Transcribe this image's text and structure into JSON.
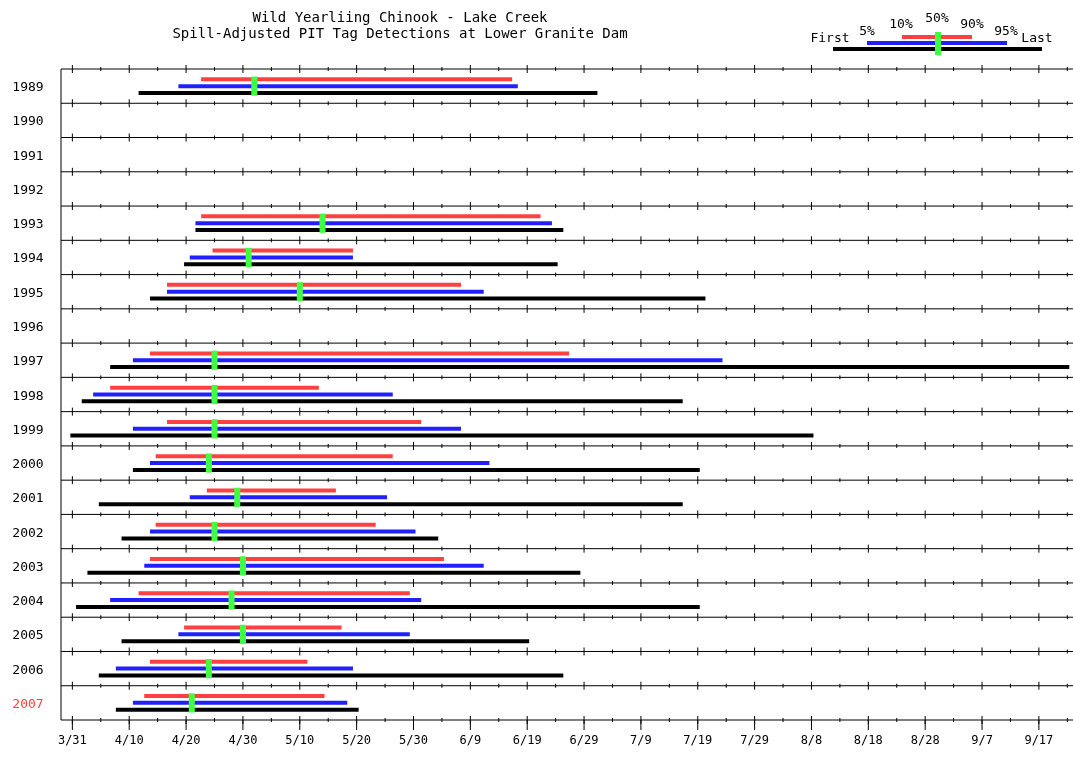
{
  "chart_data": {
    "type": "line",
    "title": "Wild Yearliing Chinook - Lake Creek",
    "subtitle": "Spill-Adjusted PIT Tag Detections at Lower Granite Dam",
    "xlim": [
      "--03-29",
      "--09-23"
    ],
    "xticks": [
      {
        "value": "--03-31",
        "label": "3/31"
      },
      {
        "value": "--04-10",
        "label": "4/10"
      },
      {
        "value": "--04-20",
        "label": "4/20"
      },
      {
        "value": "--04-30",
        "label": "4/30"
      },
      {
        "value": "--05-10",
        "label": "5/10"
      },
      {
        "value": "--05-20",
        "label": "5/20"
      },
      {
        "value": "--05-30",
        "label": "5/30"
      },
      {
        "value": "--06-09",
        "label": "6/9"
      },
      {
        "value": "--06-19",
        "label": "6/19"
      },
      {
        "value": "--06-29",
        "label": "6/29"
      },
      {
        "value": "--07-09",
        "label": "7/9"
      },
      {
        "value": "--07-19",
        "label": "7/19"
      },
      {
        "value": "--07-29",
        "label": "7/29"
      },
      {
        "value": "--08-08",
        "label": "8/8"
      },
      {
        "value": "--08-18",
        "label": "8/18"
      },
      {
        "value": "--08-28",
        "label": "8/28"
      },
      {
        "value": "--09-07",
        "label": "9/7"
      },
      {
        "value": "--09-17",
        "label": "9/17"
      }
    ],
    "ylim": [
      2007.5,
      1988.5
    ],
    "yticks": [
      1989,
      1990,
      1991,
      1992,
      1993,
      1994,
      1995,
      1996,
      1997,
      1998,
      1999,
      2000,
      2001,
      2002,
      2003,
      2004,
      2005,
      2006,
      2007
    ],
    "series": [
      {
        "color": "#ff4040",
        "x": [
          "--04-23",
          "--06-16"
        ],
        "values": [
          1988.8,
          1988.8
        ]
      },
      {
        "color": "#2020ff",
        "x": [
          "--04-19",
          "--06-17"
        ],
        "values": [
          1989,
          1989
        ]
      },
      {
        "color": "#000000",
        "x": [
          "--04-12",
          "--07-01"
        ],
        "values": [
          1989.2,
          1989.2
        ]
      },
      {
        "color": "#ff4040",
        "x": [
          "--04-23",
          "--06-21"
        ],
        "values": [
          1992.8,
          1992.8
        ]
      },
      {
        "color": "#2020ff",
        "x": [
          "--04-22",
          "--06-23"
        ],
        "values": [
          1993,
          1993
        ]
      },
      {
        "color": "#000000",
        "x": [
          "--04-22",
          "--06-25"
        ],
        "values": [
          1993.2,
          1993.2
        ]
      },
      {
        "color": "#ff4040",
        "x": [
          "--04-25",
          "--05-19"
        ],
        "values": [
          1993.8,
          1993.8
        ]
      },
      {
        "color": "#2020ff",
        "x": [
          "--04-21",
          "--05-19"
        ],
        "values": [
          1994,
          1994
        ]
      },
      {
        "color": "#000000",
        "x": [
          "--04-20",
          "--06-24"
        ],
        "values": [
          1994.2,
          1994.2
        ]
      },
      {
        "color": "#ff4040",
        "x": [
          "--04-17",
          "--06-07"
        ],
        "values": [
          1994.8,
          1994.8
        ]
      },
      {
        "color": "#2020ff",
        "x": [
          "--04-17",
          "--06-11"
        ],
        "values": [
          1995,
          1995
        ]
      },
      {
        "color": "#000000",
        "x": [
          "--04-14",
          "--07-20"
        ],
        "values": [
          1995.2,
          1995.2
        ]
      },
      {
        "color": "#ff4040",
        "x": [
          "--04-14",
          "--06-26"
        ],
        "values": [
          1996.8,
          1996.8
        ]
      },
      {
        "color": "#2020ff",
        "x": [
          "--04-11",
          "--07-23"
        ],
        "values": [
          1997,
          1997
        ]
      },
      {
        "color": "#000000",
        "x": [
          "--04-07",
          "--09-22"
        ],
        "values": [
          1997.2,
          1997.2
        ]
      },
      {
        "color": "#ff4040",
        "x": [
          "--04-07",
          "--05-13"
        ],
        "values": [
          1997.8,
          1997.8
        ]
      },
      {
        "color": "#2020ff",
        "x": [
          "--04-04",
          "--05-26"
        ],
        "values": [
          1998,
          1998
        ]
      },
      {
        "color": "#000000",
        "x": [
          "--04-02",
          "--07-16"
        ],
        "values": [
          1998.2,
          1998.2
        ]
      },
      {
        "color": "#ff4040",
        "x": [
          "--04-17",
          "--05-31"
        ],
        "values": [
          1998.8,
          1998.8
        ]
      },
      {
        "color": "#2020ff",
        "x": [
          "--04-11",
          "--06-07"
        ],
        "values": [
          1999,
          1999
        ]
      },
      {
        "color": "#000000",
        "x": [
          "--03-31",
          "--08-08"
        ],
        "values": [
          1999.2,
          1999.2
        ]
      },
      {
        "color": "#ff4040",
        "x": [
          "--04-15",
          "--05-26"
        ],
        "values": [
          1999.8,
          1999.8
        ]
      },
      {
        "color": "#2020ff",
        "x": [
          "--04-14",
          "--06-12"
        ],
        "values": [
          2000,
          2000
        ]
      },
      {
        "color": "#000000",
        "x": [
          "--04-11",
          "--07-19"
        ],
        "values": [
          2000.2,
          2000.2
        ]
      },
      {
        "color": "#ff4040",
        "x": [
          "--04-24",
          "--05-16"
        ],
        "values": [
          2000.8,
          2000.8
        ]
      },
      {
        "color": "#2020ff",
        "x": [
          "--04-21",
          "--05-25"
        ],
        "values": [
          2001,
          2001
        ]
      },
      {
        "color": "#000000",
        "x": [
          "--04-05",
          "--07-16"
        ],
        "values": [
          2001.2,
          2001.2
        ]
      },
      {
        "color": "#ff4040",
        "x": [
          "--04-15",
          "--05-23"
        ],
        "values": [
          2001.8,
          2001.8
        ]
      },
      {
        "color": "#2020ff",
        "x": [
          "--04-14",
          "--05-30"
        ],
        "values": [
          2002,
          2002
        ]
      },
      {
        "color": "#000000",
        "x": [
          "--04-09",
          "--06-03"
        ],
        "values": [
          2002.2,
          2002.2
        ]
      },
      {
        "color": "#ff4040",
        "x": [
          "--04-14",
          "--06-04"
        ],
        "values": [
          2002.8,
          2002.8
        ]
      },
      {
        "color": "#2020ff",
        "x": [
          "--04-13",
          "--06-11"
        ],
        "values": [
          2003,
          2003
        ]
      },
      {
        "color": "#000000",
        "x": [
          "--04-03",
          "--06-28"
        ],
        "values": [
          2003.2,
          2003.2
        ]
      },
      {
        "color": "#ff4040",
        "x": [
          "--04-12",
          "--05-29"
        ],
        "values": [
          2003.8,
          2003.8
        ]
      },
      {
        "color": "#2020ff",
        "x": [
          "--04-07",
          "--05-31"
        ],
        "values": [
          2004,
          2004
        ]
      },
      {
        "color": "#000000",
        "x": [
          "--04-01",
          "--07-19"
        ],
        "values": [
          2004.2,
          2004.2
        ]
      },
      {
        "color": "#ff4040",
        "x": [
          "--04-20",
          "--05-17"
        ],
        "values": [
          2004.8,
          2004.8
        ]
      },
      {
        "color": "#2020ff",
        "x": [
          "--04-19",
          "--05-29"
        ],
        "values": [
          2005,
          2005
        ]
      },
      {
        "color": "#000000",
        "x": [
          "--04-09",
          "--06-19"
        ],
        "values": [
          2005.2,
          2005.2
        ]
      },
      {
        "color": "#ff4040",
        "x": [
          "--04-14",
          "--05-11"
        ],
        "values": [
          2005.8,
          2005.8
        ]
      },
      {
        "color": "#2020ff",
        "x": [
          "--04-08",
          "--05-19"
        ],
        "values": [
          2006,
          2006
        ]
      },
      {
        "color": "#000000",
        "x": [
          "--04-05",
          "--06-25"
        ],
        "values": [
          2006.2,
          2006.2
        ]
      },
      {
        "color": "#ff4040",
        "x": [
          "--04-13",
          "--05-14"
        ],
        "values": [
          2006.8,
          2006.8
        ]
      },
      {
        "color": "#2020ff",
        "x": [
          "--04-11",
          "--05-18"
        ],
        "values": [
          2007,
          2007
        ]
      },
      {
        "color": "#000000",
        "x": [
          "--04-08",
          "--05-20"
        ],
        "values": [
          2007.2,
          2007.2
        ]
      },
      {
        "type": "scatter",
        "color": "#40ff40",
        "marker": "square",
        "x": [
          "--05-02",
          "--05-14",
          "--05-01",
          "--05-10",
          "--04-25",
          "--04-25",
          "--04-25",
          "--04-24",
          "--04-29",
          "--04-25",
          "--04-30",
          "--04-28",
          "--04-30",
          "--04-24",
          "--04-21"
        ],
        "values": [
          1989,
          1993,
          1994,
          1995,
          1997,
          1998,
          1999,
          2000,
          2001,
          2002,
          2003,
          2004,
          2005,
          2006,
          2007
        ]
      }
    ],
    "annotations": [
      "First",
      "5%",
      "10%",
      "50%",
      "90%",
      "95%",
      "Last"
    ]
  }
}
